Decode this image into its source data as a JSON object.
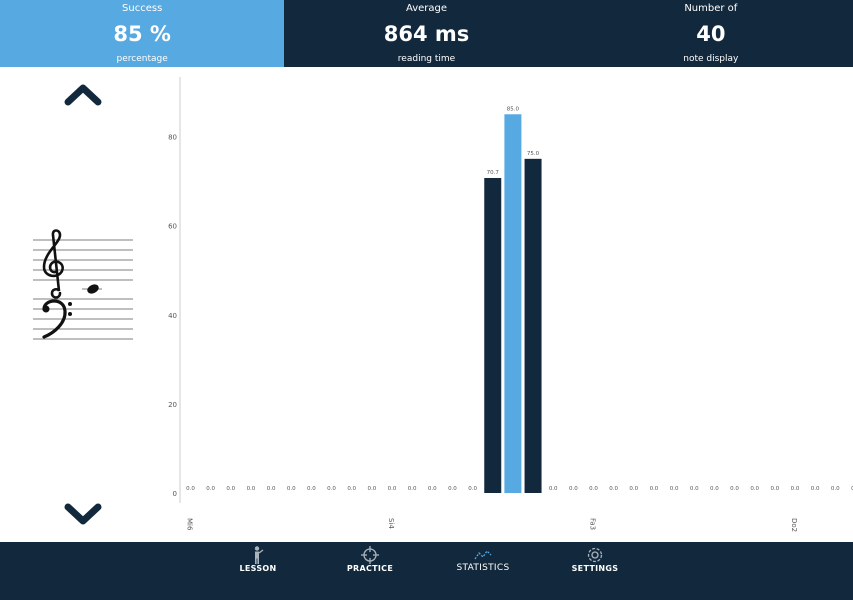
{
  "stats": [
    {
      "top": "Success",
      "value": "85 %",
      "bottom": "percentage",
      "active": true
    },
    {
      "top": "Average",
      "value": "864 ms",
      "bottom": "reading time",
      "active": false
    },
    {
      "top": "Number of",
      "value": "40",
      "bottom": "note display",
      "active": false
    }
  ],
  "colors": {
    "dark": "#12293d",
    "accent": "#56a9e1",
    "axis": "#cccccc",
    "text": "#555555"
  },
  "staff": {
    "clefs": [
      "treble-clef",
      "bass-clef"
    ],
    "note": "whole-note-middle-c"
  },
  "chart_data": {
    "type": "bar",
    "ylim": [
      0,
      90
    ],
    "yticks": [
      0,
      20,
      40,
      60,
      80
    ],
    "values": [
      0,
      0,
      0,
      0,
      0,
      0,
      0,
      0,
      0,
      0,
      0,
      0,
      0,
      0,
      0,
      70.7,
      85.0,
      75.0,
      0,
      0,
      0,
      0,
      0,
      0,
      0,
      0,
      0,
      0,
      0,
      0,
      0,
      0,
      0,
      0
    ],
    "value_labels": [
      "0.0",
      "0.0",
      "0.0",
      "0.0",
      "0.0",
      "0.0",
      "0.0",
      "0.0",
      "0.0",
      "0.0",
      "0.0",
      "0.0",
      "0.0",
      "0.0",
      "0.0",
      "70.7",
      "85.0",
      "75.0",
      "0.0",
      "0.0",
      "0.0",
      "0.0",
      "0.0",
      "0.0",
      "0.0",
      "0.0",
      "0.0",
      "0.0",
      "0.0",
      "0.0",
      "0.0",
      "0.0",
      "0.0",
      "0.0"
    ],
    "x_tick_labels": [
      {
        "index": 0,
        "label": "Mi6"
      },
      {
        "index": 10,
        "label": "Si4"
      },
      {
        "index": 20,
        "label": "Fa3"
      },
      {
        "index": 30,
        "label": "Do2"
      }
    ],
    "highlight_index": 16
  },
  "nav": [
    {
      "id": "lesson",
      "label": "LESSON",
      "icon": "lesson-icon"
    },
    {
      "id": "practice",
      "label": "PRACTICE",
      "icon": "crosshair-icon"
    },
    {
      "id": "statistics",
      "label": "STATISTICS",
      "icon": "line-chart-icon",
      "active": true
    },
    {
      "id": "settings",
      "label": "SETTINGS",
      "icon": "gear-icon"
    }
  ]
}
